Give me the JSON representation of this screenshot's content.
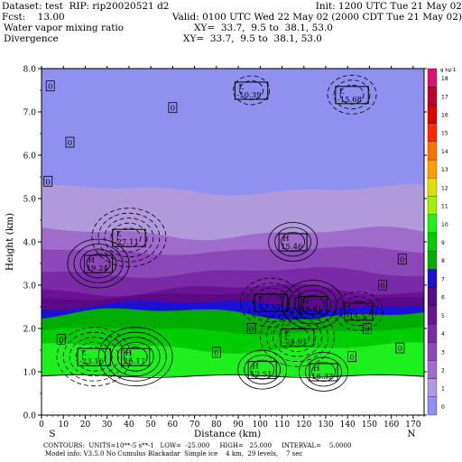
{
  "header": {
    "dataset": "Dataset: test  RIP: rip20020521 d2",
    "init": "Init: 1200 UTC Tue 21 May 02",
    "fcst": "Fcst:    13.00",
    "valid": "Valid: 0100 UTC Wed 22 May 02 (2000 CDT Tue 21 May 02)",
    "field1": "Water vapor mixing ratio",
    "xy1": "XY=  33.7,  9.5 to  38.1, 53.0",
    "field2": "Divergence",
    "xy2": "XY=  33.7,  9.5 to  38.1, 53.0"
  },
  "footer": {
    "contours": "CONTOURS:  UNITS=10**-5 s**-1   LOW=  -25.000     HIGH=   25.000     INTERVAL=    5.0000",
    "model": "Model info: V3.5.0 No Cumulus Blackadar  Simple ice    4 km,  29 levels,    7 sec"
  },
  "chart_data": {
    "type": "heatmap",
    "xlabel": "Distance (km)",
    "ylabel": "Height (km)",
    "xlim": [
      0,
      175
    ],
    "ylim": [
      0,
      8
    ],
    "x_ticks": [
      0,
      10,
      20,
      30,
      40,
      50,
      60,
      70,
      80,
      90,
      100,
      110,
      120,
      130,
      140,
      150,
      160,
      170
    ],
    "y_ticks": [
      "0.0",
      "1.0",
      "2.0",
      "3.0",
      "4.0",
      "5.0",
      "6.0",
      "7.0",
      "8.0"
    ],
    "x_left_label": "S",
    "x_right_label": "N",
    "colorbar_unit": "g kg-1",
    "colorbar_levels": [
      "0",
      "1",
      "2",
      "3",
      "4",
      "5",
      "6",
      "7",
      "8",
      "9",
      "10",
      "11",
      "12",
      "13",
      "14",
      "15",
      "16",
      "17",
      "18"
    ],
    "colorbar_colors": [
      "#9090f0",
      "#b09adc",
      "#a06ccc",
      "#8c48b8",
      "#7a2aa6",
      "#6a1294",
      "#5a0a86",
      "#1a10d8",
      "#00ad00",
      "#00cd00",
      "#1ef01e",
      "#a0f000",
      "#e0e000",
      "#ffa000",
      "#ff7000",
      "#ff2800",
      "#e00000",
      "#c00030",
      "#e01070"
    ],
    "moisture_layers": [
      {
        "value": 0,
        "y_bottom": 0.9,
        "y_top": 8.0
      },
      {
        "value": 1,
        "y_bottom": 0.9,
        "y_top": 5.2
      },
      {
        "value": 2,
        "y_bottom": 0.9,
        "y_top": 4.2
      },
      {
        "value": 3,
        "y_bottom": 0.9,
        "y_top": 3.8
      },
      {
        "value": 4,
        "y_bottom": 0.9,
        "y_top": 3.3
      },
      {
        "value": 5,
        "y_bottom": 0.9,
        "y_top": 2.9
      },
      {
        "value": 6,
        "y_bottom": 0.9,
        "y_top": 2.75
      },
      {
        "value": 7,
        "y_bottom": 0.9,
        "y_top": 2.55
      },
      {
        "value": 8,
        "y_bottom": 0.9,
        "y_top": 2.35
      },
      {
        "value": 9,
        "y_bottom": 0.9,
        "y_top": 1.95
      },
      {
        "value": 10,
        "y_bottom": 0.9,
        "y_top": 1.55
      }
    ],
    "terrain_top_km": 0.9,
    "extrema": [
      {
        "type": "L",
        "value": "-10.39",
        "x": 96,
        "y": 7.5
      },
      {
        "type": "L",
        "value": "-15.68",
        "x": 142,
        "y": 7.4
      },
      {
        "type": "L",
        "value": "-27.11",
        "x": 40,
        "y": 4.1
      },
      {
        "type": "H",
        "value": "15.46",
        "x": 115,
        "y": 4.0
      },
      {
        "type": "H",
        "value": "19.24",
        "x": 26,
        "y": 3.5
      },
      {
        "type": "L",
        "value": "-17.57",
        "x": 105,
        "y": 2.6
      },
      {
        "type": "H",
        "value": "20.61",
        "x": 124,
        "y": 2.55
      },
      {
        "type": "L",
        "value": "-14.5",
        "x": 145,
        "y": 2.4
      },
      {
        "type": "L",
        "value": "-24.91",
        "x": 117,
        "y": 1.8
      },
      {
        "type": "L",
        "value": "-23.16",
        "x": 24,
        "y": 1.35
      },
      {
        "type": "H",
        "value": "26.17",
        "x": 43,
        "y": 1.35
      },
      {
        "type": "H",
        "value": "12.51",
        "x": 101,
        "y": 1.05
      },
      {
        "type": "H",
        "value": "16.32",
        "x": 129,
        "y": 1.0
      }
    ],
    "zero_labels": [
      {
        "x": 4,
        "y": 7.6
      },
      {
        "x": 13,
        "y": 6.3
      },
      {
        "x": 60,
        "y": 7.1
      },
      {
        "x": 3,
        "y": 5.4
      },
      {
        "x": 156,
        "y": 3.0
      },
      {
        "x": 149,
        "y": 2.0
      },
      {
        "x": 9,
        "y": 1.75
      },
      {
        "x": 96,
        "y": 2.0
      },
      {
        "x": 80,
        "y": 1.45
      },
      {
        "x": 142,
        "y": 1.35
      },
      {
        "x": 164,
        "y": 1.55
      },
      {
        "x": 165,
        "y": 3.6
      }
    ]
  }
}
